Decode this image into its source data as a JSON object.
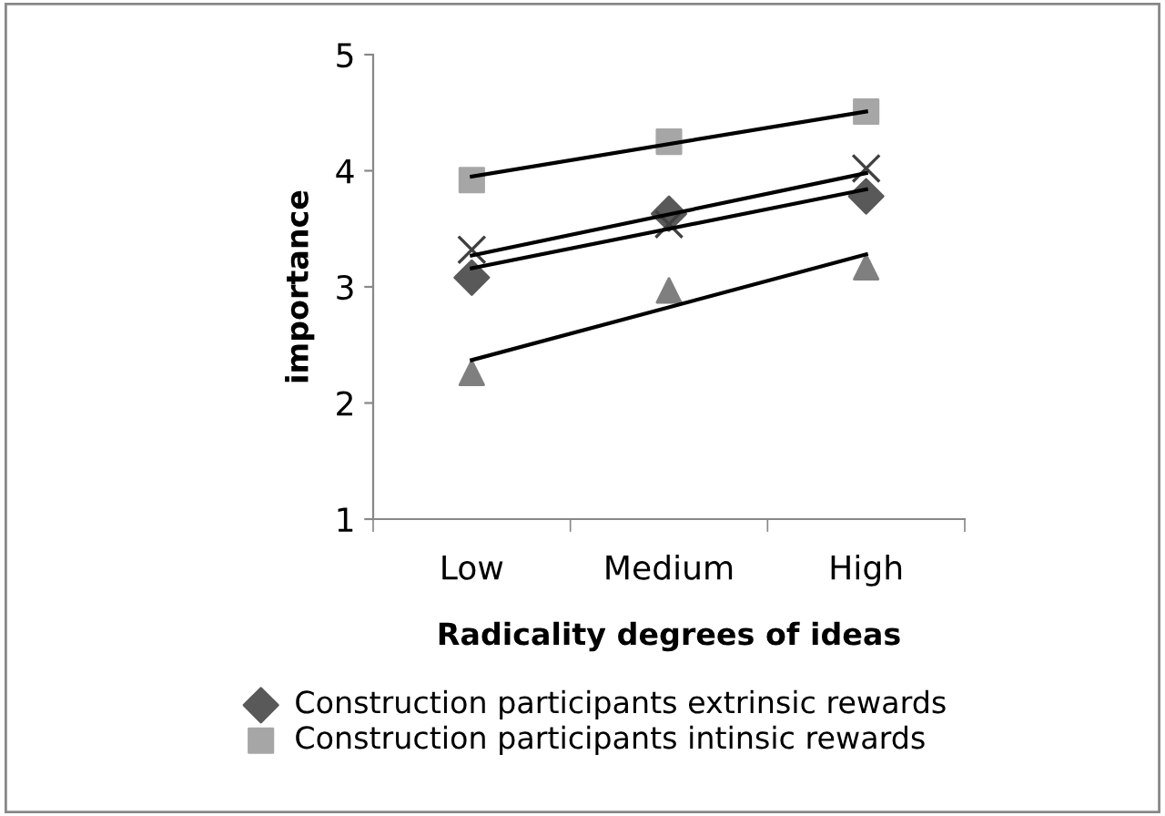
{
  "chart_data": {
    "type": "scatter",
    "xlabel": "Radicality degrees of ideas",
    "ylabel": "importance",
    "categories": [
      "Low",
      "Medium",
      "High"
    ],
    "ylim": [
      1,
      5
    ],
    "yticks": [
      1,
      2,
      3,
      4,
      5
    ],
    "grid": false,
    "legend": "bottom",
    "series": [
      {
        "name": "Construction participants extrinsic rewards",
        "color": "#595959",
        "marker": "diamond",
        "values": [
          3.08,
          3.63,
          3.78
        ]
      },
      {
        "name": "Construction participants intinsic rewards",
        "color": "#a6a6a6",
        "marker": "square",
        "values": [
          3.92,
          4.25,
          4.51
        ]
      },
      {
        "color": "#404040",
        "marker": "cross",
        "values": [
          3.32,
          3.54,
          4.02
        ]
      },
      {
        "color": "#7f7f7f",
        "marker": "triangle",
        "values": [
          2.26,
          2.97,
          3.17
        ]
      },
      {
        "type": "line",
        "color": "#000000",
        "marker": "none",
        "x": [
          "Low",
          "High"
        ],
        "values": [
          3.16,
          3.84
        ]
      },
      {
        "type": "line",
        "color": "#000000",
        "marker": "none",
        "x": [
          "Low",
          "High"
        ],
        "values": [
          3.95,
          4.51
        ]
      },
      {
        "type": "line",
        "color": "#000000",
        "marker": "none",
        "x": [
          "Low",
          "High"
        ],
        "values": [
          3.27,
          3.98
        ]
      },
      {
        "type": "line",
        "color": "#000000",
        "marker": "none",
        "x": [
          "Low",
          "High"
        ],
        "values": [
          2.37,
          3.28
        ]
      }
    ]
  }
}
